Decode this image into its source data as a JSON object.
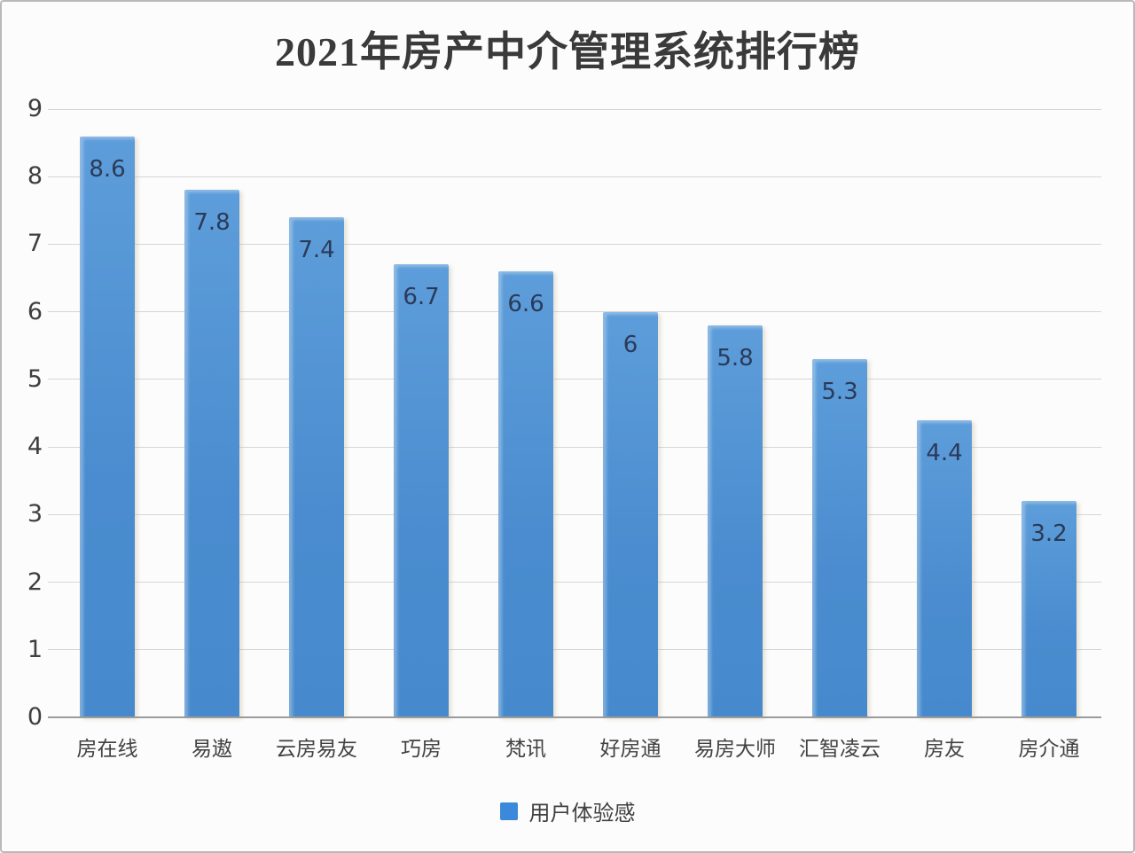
{
  "chart_data": {
    "type": "bar",
    "title": "2021年房产中介管理系统排行榜",
    "categories": [
      "房在线",
      "易遨",
      "云房易友",
      "巧房",
      "梵讯",
      "好房通",
      "易房大师",
      "汇智凌云",
      "房友",
      "房介通"
    ],
    "series": [
      {
        "name": "用户体验感",
        "values": [
          8.6,
          7.8,
          7.4,
          6.7,
          6.6,
          6,
          5.8,
          5.3,
          4.4,
          3.2
        ]
      }
    ],
    "xlabel": "",
    "ylabel": "",
    "ylim": [
      0,
      9
    ],
    "yticks": [
      0,
      1,
      2,
      3,
      4,
      5,
      6,
      7,
      8,
      9
    ],
    "grid": true,
    "legend_position": "bottom",
    "colors": {
      "bar": "#4a8ccf",
      "bar_highlight": "#5d9dda",
      "value_label": "#2b3a58",
      "gridline": "#d6d6d6",
      "axis_line": "#9b9b9b",
      "axis_text": "#3f3f3f",
      "title_text": "#3a3a3a",
      "legend_swatch": "#3c88da",
      "background": "#fcfcfc"
    }
  },
  "legend": {
    "label": "用户体验感"
  }
}
